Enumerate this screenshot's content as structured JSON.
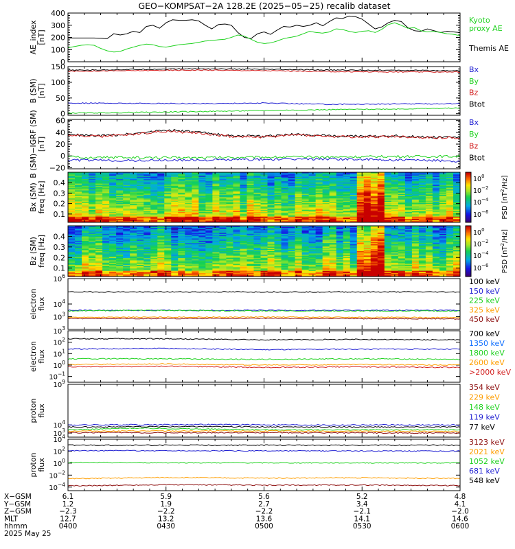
{
  "title": "GEO−KOMPSAT−2A 128.2E (2025−05−25) recalib dataset",
  "colors": {
    "black": "#000000",
    "green": "#1fd21f",
    "blue": "#1f1fd2",
    "red": "#d21f1f",
    "orange": "#ff9e00",
    "darkred": "#8c0d0d",
    "brightblue": "#0a6cff",
    "cyan": "#00b0ff"
  },
  "chart_data": [
    {
      "type": "line",
      "ylabel_lines": [
        "AE_index",
        "[nT]"
      ],
      "ylim": [
        0,
        400
      ],
      "yticks": [
        "400",
        "300",
        "200",
        "100",
        "0"
      ],
      "x_range": [
        "0400",
        "0600"
      ],
      "legend": [
        {
          "label": "Kyoto",
          "color": "green"
        },
        {
          "label": "proxy AE",
          "color": "green"
        },
        {
          "label": "Themis AE",
          "color": "black"
        }
      ],
      "series": [
        {
          "color": "black",
          "x": [
            0,
            4,
            8,
            12,
            14,
            16,
            18,
            20,
            22,
            24,
            26,
            28,
            30,
            32,
            34,
            36,
            38,
            40,
            42,
            44,
            46,
            48,
            50,
            52,
            54,
            56,
            58,
            60,
            62,
            64,
            66,
            68,
            70,
            72,
            74,
            76,
            78,
            80,
            82,
            84,
            86,
            88,
            90,
            92,
            94,
            96,
            98,
            100,
            102,
            104,
            106,
            108,
            110,
            112,
            114,
            116,
            118,
            120
          ],
          "y": [
            195,
            195,
            195,
            190,
            230,
            220,
            230,
            250,
            240,
            290,
            300,
            275,
            320,
            345,
            340,
            340,
            345,
            335,
            300,
            270,
            305,
            310,
            300,
            240,
            200,
            190,
            230,
            245,
            225,
            260,
            290,
            285,
            300,
            290,
            300,
            320,
            295,
            330,
            360,
            355,
            375,
            370,
            350,
            310,
            270,
            285,
            320,
            340,
            330,
            280,
            255,
            250,
            270,
            255,
            240,
            250,
            245,
            240
          ]
        },
        {
          "color": "green",
          "x": [
            0,
            2,
            4,
            6,
            8,
            10,
            12,
            14,
            16,
            18,
            20,
            22,
            24,
            26,
            28,
            30,
            32,
            34,
            36,
            38,
            40,
            42,
            44,
            46,
            48,
            50,
            52,
            54,
            56,
            58,
            60,
            62,
            64,
            66,
            68,
            70,
            72,
            74,
            76,
            78,
            80,
            82,
            84,
            86,
            88,
            90,
            92,
            94,
            96,
            98,
            100,
            102,
            104,
            106,
            108,
            110,
            112,
            114,
            116,
            118,
            120
          ],
          "y": [
            115,
            125,
            135,
            140,
            135,
            110,
            90,
            80,
            85,
            105,
            120,
            135,
            145,
            140,
            125,
            120,
            130,
            140,
            145,
            150,
            160,
            170,
            175,
            180,
            185,
            200,
            220,
            210,
            185,
            160,
            150,
            155,
            170,
            190,
            200,
            210,
            230,
            250,
            240,
            235,
            245,
            270,
            265,
            250,
            240,
            250,
            255,
            240,
            265,
            305,
            320,
            300,
            275,
            280,
            255,
            245,
            250,
            240,
            230,
            225,
            215
          ]
        }
      ]
    },
    {
      "type": "line",
      "ylabel_lines": [
        "B (SM)",
        "[nT]"
      ],
      "ylim": [
        -5,
        150
      ],
      "yticks": [
        "150",
        "100",
        "50",
        "0"
      ],
      "legend": [
        {
          "label": "Bx",
          "color": "blue"
        },
        {
          "label": "By",
          "color": "green"
        },
        {
          "label": "Bz",
          "color": "red"
        },
        {
          "label": "Btot",
          "color": "black"
        }
      ],
      "series": [
        {
          "color": "black",
          "x": [
            0,
            20,
            40,
            60,
            80,
            100,
            120
          ],
          "y": [
            138,
            141,
            143,
            141,
            139,
            138,
            137
          ]
        },
        {
          "color": "red",
          "x": [
            0,
            20,
            40,
            60,
            80,
            100,
            120
          ],
          "y": [
            135,
            137,
            139,
            137,
            134,
            133,
            133
          ]
        },
        {
          "color": "blue",
          "x": [
            0,
            20,
            40,
            60,
            80,
            100,
            120
          ],
          "y": [
            34,
            33,
            32,
            34,
            30,
            31,
            32
          ]
        },
        {
          "color": "green",
          "x": [
            0,
            20,
            40,
            60,
            80,
            100,
            120
          ],
          "y": [
            2,
            4,
            7,
            10,
            13,
            15,
            18
          ]
        }
      ]
    },
    {
      "type": "line",
      "ylabel_lines": [
        "B (SM)−IGRF (SM)",
        "[nT]"
      ],
      "ylim": [
        -22,
        62
      ],
      "yticks": [
        "60",
        "40",
        "20",
        "0",
        "−20"
      ],
      "legend": [
        {
          "label": "Bx",
          "color": "blue"
        },
        {
          "label": "By",
          "color": "green"
        },
        {
          "label": "Bz",
          "color": "red"
        },
        {
          "label": "Btot",
          "color": "black"
        }
      ],
      "series": [
        {
          "color": "black",
          "x": [
            0,
            10,
            20,
            30,
            40,
            50,
            60,
            70,
            80,
            90,
            100,
            110,
            120
          ],
          "y": [
            36,
            34,
            38,
            44,
            40,
            34,
            33,
            37,
            34,
            33,
            34,
            32,
            32
          ]
        },
        {
          "color": "red",
          "x": [
            0,
            10,
            20,
            30,
            40,
            50,
            60,
            70,
            80,
            90,
            100,
            110,
            120
          ],
          "y": [
            35,
            33,
            37,
            42,
            39,
            33,
            32,
            36,
            33,
            32,
            33,
            31,
            31
          ]
        },
        {
          "color": "green",
          "x": [
            0,
            20,
            40,
            60,
            80,
            100,
            120
          ],
          "y": [
            -2,
            -3,
            -3,
            -2,
            -2,
            -1,
            -1
          ]
        },
        {
          "color": "blue",
          "x": [
            0,
            20,
            40,
            60,
            80,
            100,
            120
          ],
          "y": [
            -7,
            -8,
            -7,
            -6,
            -5,
            -7,
            -9
          ]
        }
      ]
    },
    {
      "type": "heatmap",
      "ylabel_lines": [
        "Bx (SM)",
        "freq [Hz]"
      ],
      "ylim": [
        0.02,
        0.5
      ],
      "yticks": [
        "0.4",
        "0.3",
        "0.2",
        "0.1"
      ],
      "colorbar": {
        "label_base": "PSD [nT",
        "label_sup": "2",
        "label_tail": "/Hz]",
        "ticks": [
          "0",
          "−2",
          "−4",
          "−6"
        ]
      }
    },
    {
      "type": "heatmap",
      "ylabel_lines": [
        "Bz (SM)",
        "freq [Hz]"
      ],
      "ylim": [
        0.02,
        0.5
      ],
      "yticks": [
        "0.4",
        "0.3",
        "0.2",
        "0.1"
      ],
      "colorbar": {
        "label_base": "PSD [nT",
        "label_sup": "2",
        "label_tail": "/Hz]",
        "ticks": [
          "0",
          "−2",
          "−4",
          "−6"
        ]
      }
    },
    {
      "type": "line",
      "scale": "log",
      "ylabel_lines": [
        "electron",
        "flux"
      ],
      "ylim_exp": [
        2,
        6
      ],
      "yticks_exp": [
        "6",
        "4",
        "3"
      ],
      "legend": [
        {
          "label": "100 keV",
          "color": "black"
        },
        {
          "label": "150 keV",
          "color": "blue"
        },
        {
          "label": "225 keV",
          "color": "green"
        },
        {
          "label": "325 keV",
          "color": "orange"
        },
        {
          "label": "450 keV",
          "color": "darkred"
        }
      ],
      "series": [
        {
          "color": "black",
          "x": [
            0,
            60,
            120
          ],
          "y_exp": [
            4.95,
            4.95,
            4.95
          ]
        },
        {
          "color": "blue",
          "x": [
            0,
            60,
            120
          ],
          "y_exp": [
            3.5,
            3.5,
            3.5
          ]
        },
        {
          "color": "green",
          "x": [
            0,
            20,
            60,
            120
          ],
          "y_exp": [
            3.45,
            3.5,
            3.45,
            3.45
          ]
        },
        {
          "color": "orange",
          "x": [
            0,
            60,
            120
          ],
          "y_exp": [
            2.95,
            2.97,
            2.93
          ]
        },
        {
          "color": "darkred",
          "x": [
            0,
            60,
            120
          ],
          "y_exp": [
            2.85,
            2.87,
            2.83
          ]
        }
      ]
    },
    {
      "type": "line",
      "scale": "log",
      "ylabel_lines": [
        "electron",
        "flux"
      ],
      "ylim_exp": [
        -1.5,
        3
      ],
      "yticks_exp": [
        "3",
        "2",
        "1",
        "0",
        "−1"
      ],
      "legend": [
        {
          "label": "700 keV",
          "color": "black"
        },
        {
          "label": "1350 keV",
          "color": "brightblue"
        },
        {
          "label": "1800 keV",
          "color": "green"
        },
        {
          "label": "2600 keV",
          "color": "orange"
        },
        {
          "label": ">2000 keV",
          "color": "red"
        }
      ],
      "series": [
        {
          "color": "black",
          "x": [
            0,
            30,
            60,
            90,
            120
          ],
          "y_exp": [
            2.3,
            2.3,
            2.2,
            2.25,
            2.2
          ]
        },
        {
          "color": "blue",
          "x": [
            0,
            30,
            60,
            90,
            120
          ],
          "y_exp": [
            1.4,
            1.45,
            1.35,
            1.4,
            1.4
          ]
        },
        {
          "color": "green",
          "x": [
            0,
            30,
            60,
            90,
            120
          ],
          "y_exp": [
            0.55,
            0.55,
            0.5,
            0.55,
            0.5
          ]
        },
        {
          "color": "orange",
          "x": [
            0,
            30,
            60,
            90,
            120
          ],
          "y_exp": [
            0.05,
            0.1,
            0.0,
            0.05,
            0.0
          ]
        },
        {
          "color": "red",
          "x": [
            0,
            30,
            60,
            90,
            120
          ],
          "y_exp": [
            -0.15,
            -0.1,
            -0.2,
            -0.15,
            -0.2
          ]
        }
      ]
    },
    {
      "type": "line",
      "scale": "log",
      "ylabel_lines": [
        "proton",
        "flux"
      ],
      "ylim_exp": [
        2.5,
        9
      ],
      "yticks_exp": [
        "9",
        "4",
        "3"
      ],
      "legend": [
        {
          "label": "354 keV",
          "color": "darkred"
        },
        {
          "label": "229 keV",
          "color": "orange"
        },
        {
          "label": "148 keV",
          "color": "green"
        },
        {
          "label": "119 keV",
          "color": "blue"
        },
        {
          "label": "77 keV",
          "color": "black"
        }
      ],
      "series": [
        {
          "color": "blue",
          "x": [
            0,
            40,
            80,
            120
          ],
          "y_exp": [
            4.0,
            4.05,
            4.0,
            4.0
          ]
        },
        {
          "color": "black",
          "x": [
            0,
            40,
            80,
            120
          ],
          "y_exp": [
            3.75,
            3.8,
            3.75,
            3.75
          ]
        },
        {
          "color": "green",
          "x": [
            0,
            20,
            60,
            120
          ],
          "y_exp": [
            3.4,
            3.6,
            3.4,
            3.4
          ]
        },
        {
          "color": "orange",
          "x": [
            0,
            60,
            120
          ],
          "y_exp": [
            3.25,
            3.25,
            3.2
          ]
        },
        {
          "color": "darkred",
          "x": [
            0,
            60,
            120
          ],
          "y_exp": [
            3.05,
            3.05,
            3.0
          ]
        }
      ]
    },
    {
      "type": "line",
      "scale": "log",
      "ylabel_lines": [
        "proton",
        "flux"
      ],
      "ylim_exp": [
        -4.6,
        4
      ],
      "yticks_exp": [
        "4",
        "2",
        "0",
        "−2",
        "−4"
      ],
      "legend": [
        {
          "label": "3123 keV",
          "color": "darkred"
        },
        {
          "label": "2021 keV",
          "color": "orange"
        },
        {
          "label": "1052 keV",
          "color": "green"
        },
        {
          "label": "681 keV",
          "color": "blue"
        },
        {
          "label": "548 keV",
          "color": "black"
        }
      ],
      "series": [
        {
          "color": "black",
          "x": [
            0,
            60,
            120
          ],
          "y_exp": [
            3.0,
            3.0,
            3.0
          ]
        },
        {
          "color": "blue",
          "x": [
            0,
            60,
            120
          ],
          "y_exp": [
            2.1,
            2.05,
            2.0
          ]
        },
        {
          "color": "green",
          "x": [
            0,
            60,
            120
          ],
          "y_exp": [
            0.1,
            0.05,
            0.05
          ]
        },
        {
          "color": "orange",
          "x": [
            0,
            30,
            60,
            90,
            120
          ],
          "y_exp": [
            -2.6,
            -2.4,
            -2.5,
            -2.45,
            -2.55
          ]
        },
        {
          "color": "darkred",
          "x": [
            0,
            30,
            60,
            90,
            120
          ],
          "y_exp": [
            -3.8,
            -3.6,
            -3.7,
            -3.65,
            -3.75
          ]
        }
      ]
    }
  ],
  "axis_table": {
    "rows": [
      {
        "label": "X−GSM",
        "values": [
          "6.1",
          "5.9",
          "5.6",
          "5.2",
          "4.8"
        ]
      },
      {
        "label": "Y−GSM",
        "values": [
          "1.2",
          "1.9",
          "2.7",
          "3.4",
          "4.1"
        ]
      },
      {
        "label": "Z−GSM",
        "values": [
          "−2.3",
          "−2.2",
          "−2.2",
          "−2.1",
          "−2.0"
        ]
      },
      {
        "label": "MLT",
        "values": [
          "12.7",
          "13.2",
          "13.6",
          "14.1",
          "14.6"
        ]
      },
      {
        "label": "hhmm",
        "values": [
          "0400",
          "0430",
          "0500",
          "0530",
          "0600"
        ]
      }
    ],
    "date": "2025 May 25"
  }
}
